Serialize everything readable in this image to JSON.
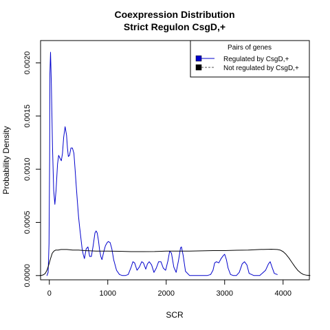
{
  "chart_data": {
    "type": "line",
    "title": [
      "Coexpression Distribution",
      "Strict Regulon CsgD,+"
    ],
    "xlabel": "SCR",
    "ylabel": "Probability Density",
    "xlim": [
      -150,
      4450
    ],
    "ylim": [
      -4e-05,
      0.00221
    ],
    "x_ticks": [
      0,
      1000,
      2000,
      3000,
      4000
    ],
    "x_tick_labels": [
      "0",
      "1000",
      "2000",
      "3000",
      "4000"
    ],
    "y_ticks": [
      0,
      0.0005,
      0.001,
      0.0015,
      0.002
    ],
    "y_tick_labels": [
      "0.0000",
      "0.0005",
      "0.0010",
      "0.0015",
      "0.0020"
    ],
    "grid": false,
    "legend": {
      "title": "Pairs of genes",
      "placement": "top-right",
      "entries": [
        "Regulated by  CsgD,+",
        "Not regulated by  CsgD,+"
      ]
    },
    "series": [
      {
        "name": "Regulated by  CsgD,+",
        "color": "#0000cc",
        "x": [
          -40,
          -20,
          -5,
          5,
          10,
          20,
          35,
          55,
          75,
          95,
          115,
          140,
          160,
          185,
          205,
          225,
          245,
          270,
          295,
          310,
          325,
          345,
          370,
          395,
          420,
          440,
          460,
          480,
          500,
          520,
          540,
          560,
          580,
          600,
          630,
          660,
          690,
          720,
          750,
          780,
          800,
          820,
          840,
          860,
          880,
          900,
          930,
          960,
          990,
          1010,
          1040,
          1070,
          1100,
          1150,
          1200,
          1250,
          1300,
          1350,
          1400,
          1430,
          1460,
          1500,
          1540,
          1580,
          1610,
          1650,
          1680,
          1710,
          1750,
          1790,
          1830,
          1870,
          1910,
          1950,
          1990,
          2030,
          2060,
          2090,
          2130,
          2170,
          2210,
          2245,
          2260,
          2290,
          2330,
          2400,
          2500,
          2600,
          2700,
          2760,
          2800,
          2830,
          2860,
          2900,
          2940,
          2980,
          3000,
          3030,
          3060,
          3100,
          3150,
          3200,
          3250,
          3300,
          3340,
          3380,
          3420,
          3500,
          3600,
          3700,
          3750,
          3780,
          3810,
          3850,
          3900
        ],
        "y": [
          0,
          3e-05,
          0.0003,
          0.0011,
          0.0019,
          0.0021,
          0.0018,
          0.0012,
          0.0008,
          0.00067,
          0.0008,
          0.00105,
          0.00113,
          0.0011,
          0.00108,
          0.00115,
          0.0013,
          0.0014,
          0.00132,
          0.0012,
          0.00112,
          0.00113,
          0.0012,
          0.0012,
          0.00115,
          0.001,
          0.00085,
          0.0007,
          0.00055,
          0.00045,
          0.00035,
          0.00026,
          0.0002,
          0.00016,
          0.00025,
          0.00027,
          0.00018,
          0.00018,
          0.00028,
          0.0004,
          0.00042,
          0.0004,
          0.00033,
          0.00024,
          0.00018,
          0.00015,
          0.00022,
          0.00028,
          0.00031,
          0.00032,
          0.00031,
          0.00025,
          0.00015,
          5e-05,
          1e-05,
          0,
          0,
          1e-05,
          8e-05,
          0.00013,
          0.00012,
          5e-05,
          8e-05,
          0.00013,
          0.00012,
          6e-05,
          0.00011,
          0.00013,
          0.0001,
          3e-05,
          7e-05,
          0.00013,
          0.00013,
          7e-05,
          5e-05,
          0.00014,
          0.00023,
          0.00021,
          8e-05,
          3e-05,
          0.00014,
          0.00026,
          0.00027,
          0.00019,
          4e-05,
          0,
          0,
          0,
          0,
          1e-05,
          5e-05,
          0.00012,
          0.00013,
          0.00012,
          0.00016,
          0.00019,
          0.0002,
          0.00015,
          7e-05,
          1e-05,
          0,
          0,
          3e-05,
          0.00011,
          0.00013,
          0.0001,
          2e-05,
          0,
          0,
          5e-05,
          0.00011,
          0.00013,
          8e-05,
          2e-05,
          1e-05
        ]
      },
      {
        "name": "Not regulated by  CsgD,+",
        "color": "#000000",
        "x": [
          -160,
          -130,
          -100,
          -70,
          -40,
          -10,
          20,
          50,
          80,
          110,
          150,
          200,
          300,
          400,
          500,
          600,
          800,
          1000,
          1200,
          1400,
          1600,
          1800,
          2000,
          2200,
          2400,
          2600,
          2800,
          3000,
          3200,
          3400,
          3600,
          3800,
          3900,
          3950,
          4000,
          4050,
          4100,
          4150,
          4200,
          4250,
          4300,
          4350,
          4400,
          4460
        ],
        "y": [
          0,
          2e-06,
          8e-06,
          2e-05,
          5e-05,
          0.0001,
          0.00016,
          0.00021,
          0.00023,
          0.00024,
          0.00024,
          0.000245,
          0.000245,
          0.00024,
          0.00024,
          0.000235,
          0.00023,
          0.00023,
          0.000228,
          0.000225,
          0.000225,
          0.000226,
          0.00023,
          0.00023,
          0.00023,
          0.000232,
          0.000235,
          0.000235,
          0.000238,
          0.00024,
          0.000245,
          0.000248,
          0.000245,
          0.00024,
          0.000225,
          0.0002,
          0.000165,
          0.000125,
          8.5e-05,
          5e-05,
          2.5e-05,
          1e-05,
          3e-06,
          0
        ]
      }
    ]
  }
}
